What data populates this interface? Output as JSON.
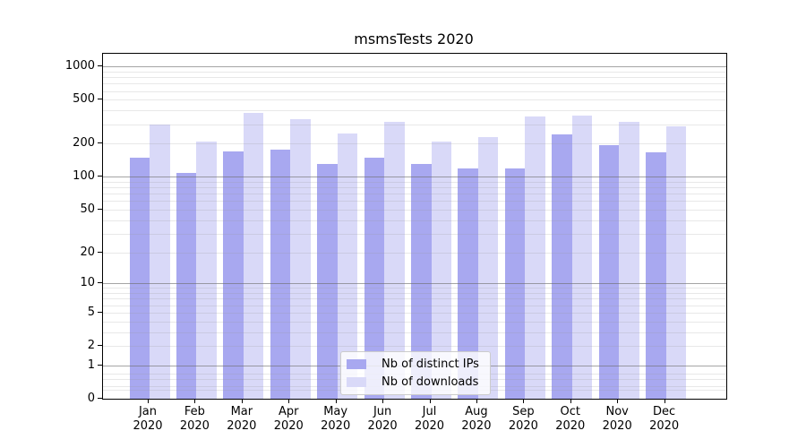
{
  "title": "msmsTests 2020",
  "chart_data": {
    "type": "bar",
    "title": "msmsTests 2020",
    "categories": [
      "Jan",
      "Feb",
      "Mar",
      "Apr",
      "May",
      "Jun",
      "Jul",
      "Aug",
      "Sep",
      "Oct",
      "Nov",
      "Dec"
    ],
    "x_sublabel": "2020",
    "series": [
      {
        "name": "Nb of distinct IPs",
        "color": "#a8a8f0",
        "values": [
          150,
          108,
          170,
          175,
          131,
          150,
          130,
          119,
          119,
          242,
          195,
          166
        ]
      },
      {
        "name": "Nb of downloads",
        "color": "#d9d9f8",
        "values": [
          297,
          207,
          381,
          330,
          248,
          312,
          208,
          229,
          353,
          360,
          314,
          288
        ]
      }
    ],
    "y_axis": {
      "scale": "log1p",
      "ticks": [
        1000,
        500,
        200,
        100,
        50,
        20,
        10,
        5,
        2,
        1,
        0
      ],
      "ymax": 1300
    },
    "grid": {
      "major": [
        1,
        10,
        100,
        1000
      ],
      "minor": [
        0.2,
        0.3,
        0.5,
        0.7,
        2,
        3,
        4,
        5,
        6,
        7,
        8,
        9,
        20,
        30,
        40,
        50,
        60,
        70,
        80,
        90,
        200,
        300,
        400,
        500,
        600,
        700,
        800,
        900
      ],
      "on": true
    },
    "legend": {
      "position": "lower center"
    },
    "xlabel": "",
    "ylabel": ""
  }
}
